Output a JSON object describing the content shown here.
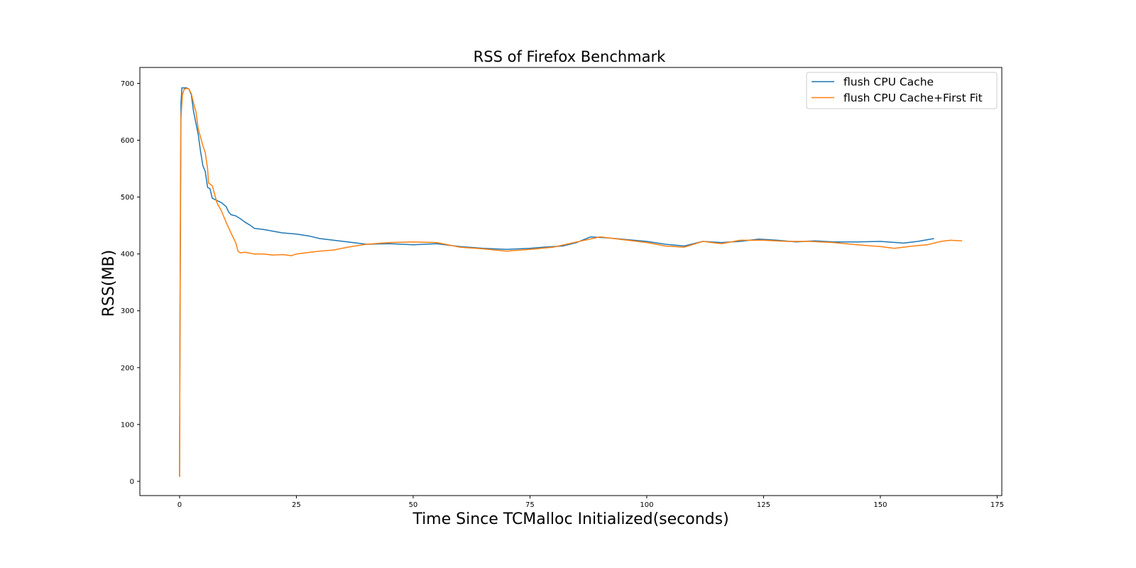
{
  "chart_data": {
    "type": "line",
    "title": "RSS of Firefox Benchmark",
    "xlabel": "Time Since TCMalloc Initialized(seconds)",
    "ylabel": "RSS(MB)",
    "xlim": [
      -8.5,
      176
    ],
    "ylim": [
      -25,
      728
    ],
    "xticks": [
      0,
      25,
      50,
      75,
      100,
      125,
      150,
      175
    ],
    "yticks": [
      0,
      100,
      200,
      300,
      400,
      500,
      600,
      700
    ],
    "grid": false,
    "legend_position": "top-right",
    "series": [
      {
        "name": "flush CPU Cache",
        "color": "#1f77b4",
        "points": [
          [
            0,
            8
          ],
          [
            0.1,
            300
          ],
          [
            0.2,
            500
          ],
          [
            0.3,
            665
          ],
          [
            0.5,
            692
          ],
          [
            1,
            692
          ],
          [
            1.5,
            692
          ],
          [
            2,
            690
          ],
          [
            2.5,
            680
          ],
          [
            3,
            650
          ],
          [
            4,
            610
          ],
          [
            4.5,
            580
          ],
          [
            5,
            555
          ],
          [
            5.5,
            545
          ],
          [
            6,
            517
          ],
          [
            6.5,
            515
          ],
          [
            7,
            498
          ],
          [
            8,
            494
          ],
          [
            9,
            490
          ],
          [
            10,
            483
          ],
          [
            10.5,
            474
          ],
          [
            11,
            469
          ],
          [
            12,
            467
          ],
          [
            13,
            462
          ],
          [
            14,
            456
          ],
          [
            15,
            451
          ],
          [
            16,
            445
          ],
          [
            18,
            443
          ],
          [
            20,
            440
          ],
          [
            22,
            437
          ],
          [
            25,
            435
          ],
          [
            28,
            431
          ],
          [
            30,
            427
          ],
          [
            33,
            424
          ],
          [
            36,
            421
          ],
          [
            38,
            419
          ],
          [
            40,
            417
          ],
          [
            45,
            418
          ],
          [
            50,
            416
          ],
          [
            55,
            418
          ],
          [
            60,
            413
          ],
          [
            65,
            410
          ],
          [
            70,
            408
          ],
          [
            75,
            410
          ],
          [
            78,
            412
          ],
          [
            82,
            414
          ],
          [
            85,
            420
          ],
          [
            88,
            430
          ],
          [
            92,
            428
          ],
          [
            96,
            425
          ],
          [
            100,
            422
          ],
          [
            104,
            417
          ],
          [
            108,
            414
          ],
          [
            112,
            422
          ],
          [
            116,
            420
          ],
          [
            120,
            422
          ],
          [
            124,
            426
          ],
          [
            128,
            424
          ],
          [
            132,
            421
          ],
          [
            136,
            423
          ],
          [
            140,
            421
          ],
          [
            145,
            421
          ],
          [
            150,
            422
          ],
          [
            155,
            419
          ],
          [
            158,
            422
          ],
          [
            161.5,
            427
          ]
        ]
      },
      {
        "name": "flush CPU Cache+First Fit",
        "color": "#ff7f0e",
        "points": [
          [
            0,
            8
          ],
          [
            0.1,
            300
          ],
          [
            0.3,
            640
          ],
          [
            0.6,
            680
          ],
          [
            1,
            690
          ],
          [
            1.5,
            691
          ],
          [
            2,
            690
          ],
          [
            2.5,
            682
          ],
          [
            3,
            665
          ],
          [
            3.5,
            650
          ],
          [
            4,
            620
          ],
          [
            5,
            590
          ],
          [
            5.5,
            578
          ],
          [
            6,
            550
          ],
          [
            6.2,
            525
          ],
          [
            7,
            520
          ],
          [
            7.5,
            505
          ],
          [
            8,
            490
          ],
          [
            9,
            475
          ],
          [
            10,
            455
          ],
          [
            11,
            437
          ],
          [
            12,
            420
          ],
          [
            12.5,
            405
          ],
          [
            13,
            402
          ],
          [
            14,
            403
          ],
          [
            16,
            400
          ],
          [
            18,
            400
          ],
          [
            20,
            398
          ],
          [
            22,
            399
          ],
          [
            24,
            397
          ],
          [
            25,
            400
          ],
          [
            28,
            403
          ],
          [
            30,
            405
          ],
          [
            33,
            407
          ],
          [
            36,
            412
          ],
          [
            40,
            417
          ],
          [
            45,
            420
          ],
          [
            50,
            421
          ],
          [
            55,
            420
          ],
          [
            60,
            412
          ],
          [
            65,
            409
          ],
          [
            70,
            405
          ],
          [
            75,
            408
          ],
          [
            80,
            412
          ],
          [
            85,
            421
          ],
          [
            90,
            430
          ],
          [
            95,
            425
          ],
          [
            100,
            420
          ],
          [
            104,
            414
          ],
          [
            108,
            412
          ],
          [
            112,
            422
          ],
          [
            116,
            418
          ],
          [
            120,
            424
          ],
          [
            125,
            424
          ],
          [
            130,
            422
          ],
          [
            135,
            422
          ],
          [
            140,
            420
          ],
          [
            145,
            416
          ],
          [
            150,
            413
          ],
          [
            153,
            410
          ],
          [
            157,
            414
          ],
          [
            160,
            416
          ],
          [
            163,
            422
          ],
          [
            165,
            424
          ],
          [
            167.5,
            423
          ]
        ]
      }
    ]
  }
}
